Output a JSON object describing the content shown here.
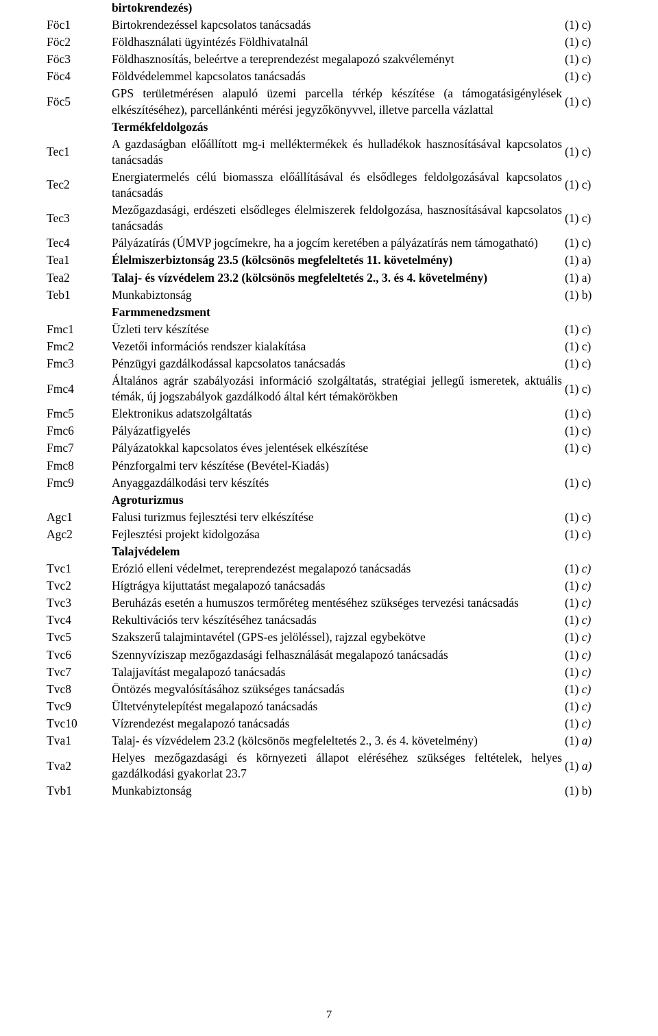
{
  "rows": [
    {
      "code": "",
      "desc": "birtokrendezés)",
      "ref": "",
      "bold": true
    },
    {
      "code": "Föc1",
      "desc": "Birtokrendezéssel kapcsolatos tanácsadás",
      "ref": "(1) c)"
    },
    {
      "code": "Föc2",
      "desc": "Földhasználati ügyintézés Földhivatalnál",
      "ref": "(1) c)"
    },
    {
      "code": "Föc3",
      "desc": "Földhasznosítás, beleértve a tereprendezést megalapozó szakvéleményt",
      "ref": "(1) c)"
    },
    {
      "code": "Föc4",
      "desc": "Földvédelemmel kapcsolatos tanácsadás",
      "ref": "(1) c)"
    },
    {
      "code": "Föc5",
      "desc": "GPS területmérésen alapuló üzemi parcella térkép készítése (a támogatásigénylések elkészítéséhez), parcellánkénti mérési jegyzőkönyvvel, illetve parcella vázlattal",
      "ref": "(1) c)",
      "multiline": true
    },
    {
      "code": "",
      "desc": "Termékfeldolgozás",
      "ref": "",
      "bold": true
    },
    {
      "code": "Tec1",
      "desc": "A gazdaságban előállított mg-i melléktermékek és hulladékok hasznosításával kapcsolatos tanácsadás",
      "ref": "(1) c)",
      "multiline": true
    },
    {
      "code": "Tec2",
      "desc": "Energiatermelés célú biomassza előállításával és elsődleges feldolgozásával kapcsolatos tanácsadás",
      "ref": "(1) c)",
      "multiline": true
    },
    {
      "code": "Tec3",
      "desc": "Mezőgazdasági, erdészeti elsődleges élelmiszerek feldolgozása, hasznosításával kapcsolatos tanácsadás",
      "ref": "(1) c)",
      "multiline": true
    },
    {
      "code": "Tec4",
      "desc": "Pályázatírás (ÚMVP jogcímekre, ha a jogcím keretében a pályázatírás nem támogatható)",
      "ref": "(1) c)",
      "multiline": true
    },
    {
      "code": "Tea1",
      "desc": "Élelmiszerbiztonság 23.5 (kölcsönös megfeleltetés 11. követelmény)",
      "ref": "(1) a)",
      "bold": true
    },
    {
      "code": "Tea2",
      "desc": "Talaj- és vízvédelem 23.2 (kölcsönös megfeleltetés 2., 3. és 4. követelmény)",
      "ref": "(1) a)",
      "bold": true
    },
    {
      "code": "Teb1",
      "desc": "Munkabiztonság",
      "ref": "(1) b)"
    },
    {
      "code": "",
      "desc": "Farmmenedzsment",
      "ref": "",
      "bold": true
    },
    {
      "code": "Fmc1",
      "desc": "Üzleti terv készítése",
      "ref": "(1) c)"
    },
    {
      "code": "Fmc2",
      "desc": "Vezetői információs rendszer kialakítása",
      "ref": "(1) c)"
    },
    {
      "code": "Fmc3",
      "desc": "Pénzügyi gazdálkodással kapcsolatos tanácsadás",
      "ref": "(1) c)"
    },
    {
      "code": "Fmc4",
      "desc": "Általános agrár szabályozási információ szolgáltatás, stratégiai jellegű ismeretek, aktuális témák, új jogszabályok gazdálkodó által kért témakörökben",
      "ref": "(1) c)",
      "multiline": true
    },
    {
      "code": "Fmc5",
      "desc": "Elektronikus adatszolgáltatás",
      "ref": "(1) c)"
    },
    {
      "code": "Fmc6",
      "desc": "Pályázatfigyelés",
      "ref": "(1) c)"
    },
    {
      "code": "Fmc7",
      "desc": "Pályázatokkal kapcsolatos éves jelentések elkészítése",
      "ref": "(1) c)"
    },
    {
      "code": "Fmc8",
      "desc": "Pénzforgalmi terv készítése (Bevétel-Kiadás)",
      "ref": ""
    },
    {
      "code": "Fmc9",
      "desc": "Anyaggazdálkodási terv készítés",
      "ref": "(1) c)"
    },
    {
      "code": "",
      "desc": "Agroturizmus",
      "ref": "",
      "bold": true
    },
    {
      "code": "Agc1",
      "desc": "Falusi turizmus fejlesztési terv elkészítése",
      "ref": "(1) c)"
    },
    {
      "code": "Agc2",
      "desc": "Fejlesztési projekt kidolgozása",
      "ref": "(1) c)"
    },
    {
      "code": "",
      "desc": "Talajvédelem",
      "ref": "",
      "bold": true
    },
    {
      "code": "Tvc1",
      "desc": "Erózió elleni védelmet, tereprendezést megalapozó tanácsadás",
      "ref": "(1) c)",
      "refItalic": true
    },
    {
      "code": "Tvc2",
      "desc": "Hígtrágya kijuttatást megalapozó tanácsadás",
      "ref": "(1) c)",
      "refItalic": true
    },
    {
      "code": "Tvc3",
      "desc": "Beruházás esetén a humuszos termőréteg mentéséhez szükséges tervezési tanácsadás",
      "ref": "(1) c)",
      "multiline": true,
      "refItalic": true
    },
    {
      "code": "Tvc4",
      "desc": "Rekultivációs terv készítéséhez tanácsadás",
      "ref": "(1) c)",
      "refItalic": true
    },
    {
      "code": "Tvc5",
      "desc": "Szakszerű talajmintavétel (GPS-es jelöléssel), rajzzal egybekötve",
      "ref": "(1) c)",
      "refItalic": true
    },
    {
      "code": "Tvc6",
      "desc": "Szennyvíziszap mezőgazdasági felhasználását megalapozó tanácsadás",
      "ref": "(1) c)",
      "refItalic": true
    },
    {
      "code": "Tvc7",
      "desc": "Talajjavítást megalapozó tanácsadás",
      "ref": "(1) c)",
      "refItalic": true
    },
    {
      "code": "Tvc8",
      "desc": "Öntözés megvalósításához szükséges tanácsadás",
      "ref": "(1) c)",
      "refItalic": true
    },
    {
      "code": "Tvc9",
      "desc": "Ültetvénytelepítést megalapozó tanácsadás",
      "ref": "(1) c)",
      "refItalic": true
    },
    {
      "code": "Tvc10",
      "desc": "Vízrendezést megalapozó tanácsadás",
      "ref": "(1) c)",
      "refItalic": true
    },
    {
      "code": "Tva1",
      "desc": "Talaj- és vízvédelem 23.2 (kölcsönös megfeleltetés 2., 3. és 4. követelmény)",
      "ref": "(1) a)",
      "refItalic": true
    },
    {
      "code": "Tva2",
      "desc": "Helyes mezőgazdasági és környezeti állapot eléréséhez szükséges feltételek, helyes gazdálkodási gyakorlat 23.7",
      "ref": "(1) a)",
      "multiline": true,
      "refItalic": true
    },
    {
      "code": "Tvb1",
      "desc": "Munkabiztonság",
      "ref": "(1) b)"
    }
  ],
  "pageNumber": "7"
}
